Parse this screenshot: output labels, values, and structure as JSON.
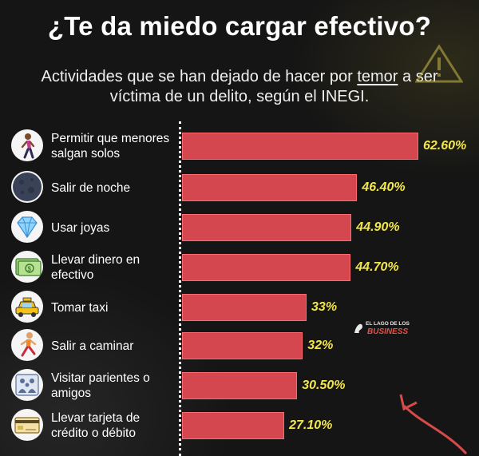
{
  "header": {
    "title": "¿Te da miedo cargar efectivo?",
    "subtitle_part1": "Actividades que se han dejado de hacer por ",
    "subtitle_emph": "temor",
    "subtitle_part2": " a ser",
    "subtitle_line2": "víctima de un delito, según el INEGI."
  },
  "watermark": {
    "brand_line1": "EL LAGO DE LOS",
    "brand_line2": "BUSINESS"
  },
  "colors": {
    "bar": "#d5474f",
    "value_text": "#f3e64a",
    "background": "#151515"
  },
  "chart_data": {
    "type": "bar",
    "orientation": "horizontal",
    "title": "¿Te da miedo cargar efectivo?",
    "categories": [
      "Permitir que menores salgan solos",
      "Salir de noche",
      "Usar joyas",
      "Llevar dinero en efectivo",
      "Tomar taxi",
      "Salir a caminar",
      "Visitar parientes o amigos",
      "Llevar tarjeta de crédito o débito"
    ],
    "values": [
      62.6,
      46.4,
      44.9,
      44.7,
      33,
      32,
      30.5,
      27.1
    ],
    "value_labels": [
      "62.60%",
      "46.40%",
      "44.90%",
      "44.70%",
      "33%",
      "32%",
      "30.50%",
      "27.10%"
    ],
    "icons": [
      "person-walking-icon",
      "moon-icon",
      "diamond-icon",
      "cash-icon",
      "taxi-icon",
      "runner-icon",
      "family-icon",
      "credit-card-icon"
    ],
    "xlim": [
      0,
      100
    ],
    "xlabel": "",
    "ylabel": ""
  }
}
